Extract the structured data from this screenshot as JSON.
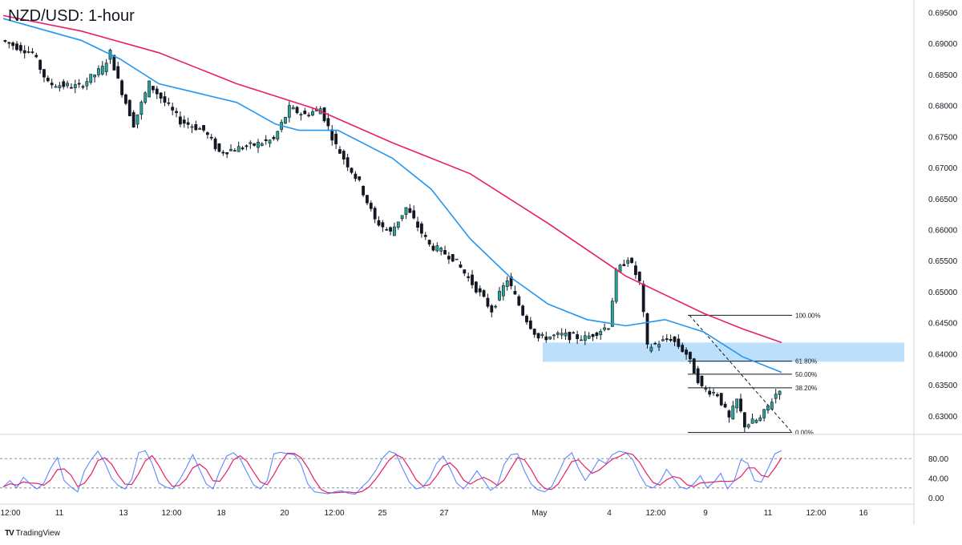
{
  "title": "NZD/USD: 1-hour",
  "brand": {
    "logo": "TV",
    "name": "TradingView"
  },
  "colors": {
    "up": "#26a69a",
    "down": "#131722",
    "ma_fast": "#2196f3",
    "ma_slow": "#e91e63",
    "zone": "#90caf9",
    "rsi_k": "#2962ff",
    "rsi_d": "#e91e63"
  },
  "chart_data": [
    {
      "type": "candlestick",
      "title": "NZD/USD: 1-hour",
      "ylim": [
        0.627,
        0.697
      ],
      "y_ticks": [
        "0.69500",
        "0.69000",
        "0.68500",
        "0.68000",
        "0.67500",
        "0.67000",
        "0.66500",
        "0.66000",
        "0.65500",
        "0.65000",
        "0.64500",
        "0.64000",
        "0.63500",
        "0.63000"
      ],
      "x_tick_labels": [
        "12:00",
        "11",
        "13",
        "12:00",
        "18",
        "20",
        "12:00",
        "25",
        "27",
        "May",
        "4",
        "12:00",
        "9",
        "11",
        "12:00",
        "16"
      ],
      "price_path": [
        {
          "t": 0,
          "p": 0.6905
        },
        {
          "t": 0.04,
          "p": 0.6885
        },
        {
          "t": 0.06,
          "p": 0.6835
        },
        {
          "t": 0.1,
          "p": 0.683
        },
        {
          "t": 0.13,
          "p": 0.686
        },
        {
          "t": 0.14,
          "p": 0.6885
        },
        {
          "t": 0.15,
          "p": 0.684
        },
        {
          "t": 0.17,
          "p": 0.677
        },
        {
          "t": 0.19,
          "p": 0.6835
        },
        {
          "t": 0.23,
          "p": 0.6775
        },
        {
          "t": 0.26,
          "p": 0.676
        },
        {
          "t": 0.28,
          "p": 0.6725
        },
        {
          "t": 0.32,
          "p": 0.6735
        },
        {
          "t": 0.35,
          "p": 0.6745
        },
        {
          "t": 0.37,
          "p": 0.6795
        },
        {
          "t": 0.39,
          "p": 0.6785
        },
        {
          "t": 0.41,
          "p": 0.6795
        },
        {
          "t": 0.43,
          "p": 0.6735
        },
        {
          "t": 0.46,
          "p": 0.6675
        },
        {
          "t": 0.48,
          "p": 0.6615
        },
        {
          "t": 0.5,
          "p": 0.6595
        },
        {
          "t": 0.52,
          "p": 0.6635
        },
        {
          "t": 0.55,
          "p": 0.6575
        },
        {
          "t": 0.58,
          "p": 0.6555
        },
        {
          "t": 0.61,
          "p": 0.6505
        },
        {
          "t": 0.63,
          "p": 0.647
        },
        {
          "t": 0.65,
          "p": 0.652
        },
        {
          "t": 0.67,
          "p": 0.6465
        },
        {
          "t": 0.69,
          "p": 0.6425
        },
        {
          "t": 0.72,
          "p": 0.643
        },
        {
          "t": 0.75,
          "p": 0.6425
        },
        {
          "t": 0.78,
          "p": 0.6445
        },
        {
          "t": 0.79,
          "p": 0.653
        },
        {
          "t": 0.805,
          "p": 0.6555
        },
        {
          "t": 0.82,
          "p": 0.6515
        },
        {
          "t": 0.83,
          "p": 0.641
        },
        {
          "t": 0.86,
          "p": 0.6425
        },
        {
          "t": 0.88,
          "p": 0.64
        },
        {
          "t": 0.9,
          "p": 0.6345
        },
        {
          "t": 0.92,
          "p": 0.6335
        },
        {
          "t": 0.935,
          "p": 0.6295
        },
        {
          "t": 0.945,
          "p": 0.6325
        },
        {
          "t": 0.955,
          "p": 0.6285
        },
        {
          "t": 0.975,
          "p": 0.6295
        },
        {
          "t": 1,
          "p": 0.6345
        }
      ],
      "moving_averages": [
        {
          "name": "fast",
          "color": "#2196f3",
          "points": [
            {
              "t": 0,
              "p": 0.694
            },
            {
              "t": 0.1,
              "p": 0.6905
            },
            {
              "t": 0.15,
              "p": 0.6875
            },
            {
              "t": 0.2,
              "p": 0.6835
            },
            {
              "t": 0.3,
              "p": 0.6805
            },
            {
              "t": 0.35,
              "p": 0.677
            },
            {
              "t": 0.38,
              "p": 0.676
            },
            {
              "t": 0.43,
              "p": 0.676
            },
            {
              "t": 0.5,
              "p": 0.6715
            },
            {
              "t": 0.55,
              "p": 0.6665
            },
            {
              "t": 0.6,
              "p": 0.6585
            },
            {
              "t": 0.65,
              "p": 0.6525
            },
            {
              "t": 0.7,
              "p": 0.648
            },
            {
              "t": 0.75,
              "p": 0.6455
            },
            {
              "t": 0.8,
              "p": 0.6445
            },
            {
              "t": 0.85,
              "p": 0.6455
            },
            {
              "t": 0.9,
              "p": 0.6435
            },
            {
              "t": 0.95,
              "p": 0.6395
            },
            {
              "t": 1,
              "p": 0.637
            }
          ]
        },
        {
          "name": "slow",
          "color": "#e91e63",
          "points": [
            {
              "t": 0,
              "p": 0.6945
            },
            {
              "t": 0.1,
              "p": 0.692
            },
            {
              "t": 0.2,
              "p": 0.6885
            },
            {
              "t": 0.3,
              "p": 0.6835
            },
            {
              "t": 0.4,
              "p": 0.6795
            },
            {
              "t": 0.5,
              "p": 0.674
            },
            {
              "t": 0.6,
              "p": 0.669
            },
            {
              "t": 0.7,
              "p": 0.661
            },
            {
              "t": 0.8,
              "p": 0.6525
            },
            {
              "t": 0.9,
              "p": 0.6465
            },
            {
              "t": 0.95,
              "p": 0.644
            },
            {
              "t": 1,
              "p": 0.6418
            }
          ]
        }
      ],
      "zone": {
        "p_top": 0.6418,
        "p_bottom": 0.6387,
        "t_start": 0.685,
        "t_end": 1
      },
      "fibonacci": [
        {
          "label": "100.00%",
          "p": 0.6462
        },
        {
          "label": "61.80%",
          "p": 0.6388
        },
        {
          "label": "50.00%",
          "p": 0.6367
        },
        {
          "label": "38.20%",
          "p": 0.6345
        },
        {
          "label": "0.00%",
          "p": 0.6273
        }
      ]
    },
    {
      "type": "line",
      "name": "stochastic",
      "ylim": [
        0,
        100
      ],
      "y_ticks": [
        "80.00",
        "40.00",
        "0.00"
      ],
      "levels": [
        80,
        20
      ],
      "k_values": [
        22,
        35,
        20,
        42,
        28,
        18,
        30,
        60,
        82,
        35,
        22,
        12,
        55,
        78,
        95,
        72,
        40,
        25,
        18,
        38,
        92,
        96,
        70,
        30,
        22,
        18,
        35,
        60,
        88,
        58,
        28,
        18,
        55,
        85,
        92,
        80,
        52,
        26,
        18,
        35,
        90,
        93,
        90,
        88,
        68,
        28,
        12,
        10,
        8,
        12,
        14,
        9,
        7,
        22,
        35,
        55,
        80,
        95,
        90,
        60,
        32,
        18,
        22,
        40,
        70,
        85,
        60,
        30,
        18,
        35,
        55,
        35,
        15,
        25,
        68,
        88,
        90,
        55,
        28,
        16,
        12,
        22,
        50,
        80,
        92,
        60,
        35,
        55,
        78,
        70,
        88,
        95,
        92,
        78,
        48,
        25,
        20,
        32,
        58,
        40,
        22,
        18,
        28,
        45,
        20,
        32,
        50,
        18,
        35,
        78,
        70,
        35,
        32,
        60,
        90,
        96
      ]
    }
  ]
}
